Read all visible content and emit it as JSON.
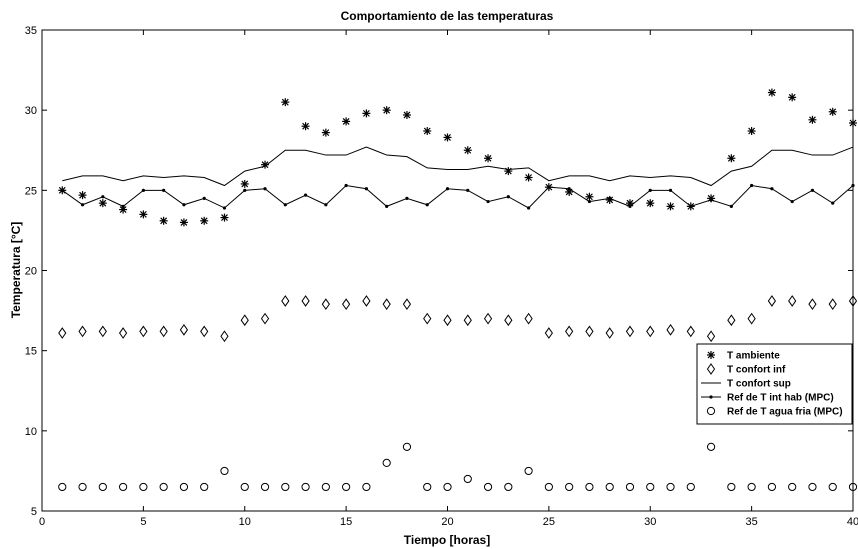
{
  "chart_data": {
    "type": "line",
    "title": "Comportamiento de las temperaturas",
    "xlabel": "Tiempo [horas]",
    "ylabel": "Temperatura [°C]",
    "xlim": [
      0,
      40
    ],
    "ylim": [
      5,
      35
    ],
    "xticks": [
      0,
      5,
      10,
      15,
      20,
      25,
      30,
      35,
      40
    ],
    "yticks": [
      5,
      10,
      15,
      20,
      25,
      30,
      35
    ],
    "grid": false,
    "legend_position": "bottom-right",
    "x": [
      1,
      2,
      3,
      4,
      5,
      6,
      7,
      8,
      9,
      10,
      11,
      12,
      13,
      14,
      15,
      16,
      17,
      18,
      19,
      20,
      21,
      22,
      23,
      24,
      25,
      26,
      27,
      28,
      29,
      30,
      31,
      32,
      33,
      34,
      35,
      36,
      37,
      38,
      39,
      40
    ],
    "series": [
      {
        "name": "T ambiente",
        "marker": "star",
        "line": false,
        "values": [
          25.0,
          24.7,
          24.2,
          23.8,
          23.5,
          23.1,
          23.0,
          23.1,
          23.3,
          25.4,
          26.6,
          30.5,
          29.0,
          28.6,
          29.3,
          29.8,
          30.0,
          29.7,
          28.7,
          28.3,
          27.5,
          27.0,
          26.2,
          25.8,
          25.2,
          24.9,
          24.6,
          24.4,
          24.2,
          24.2,
          24.0,
          24.0,
          24.5,
          27.0,
          28.7,
          31.1,
          30.8,
          29.4,
          29.9,
          29.2
        ]
      },
      {
        "name": "T confort inf",
        "marker": "diamond",
        "line": false,
        "values": [
          16.1,
          16.2,
          16.2,
          16.1,
          16.2,
          16.2,
          16.3,
          16.2,
          15.9,
          16.9,
          17.0,
          18.1,
          18.1,
          17.9,
          17.9,
          18.1,
          17.9,
          17.9,
          17.0,
          16.9,
          16.9,
          17.0,
          16.9,
          17.0,
          16.1,
          16.2,
          16.2,
          16.1,
          16.2,
          16.2,
          16.3,
          16.2,
          15.9,
          16.9,
          17.0,
          18.1,
          18.1,
          17.9,
          17.9,
          18.1
        ]
      },
      {
        "name": "T confort sup",
        "marker": "none",
        "line": true,
        "values": [
          25.6,
          25.9,
          25.9,
          25.6,
          25.9,
          25.8,
          25.9,
          25.8,
          25.3,
          26.2,
          26.5,
          27.5,
          27.5,
          27.2,
          27.2,
          27.7,
          27.2,
          27.1,
          26.4,
          26.3,
          26.3,
          26.5,
          26.3,
          26.4,
          25.6,
          25.9,
          25.9,
          25.6,
          25.9,
          25.8,
          25.9,
          25.8,
          25.3,
          26.2,
          26.5,
          27.5,
          27.5,
          27.2,
          27.2,
          27.7
        ]
      },
      {
        "name": "Ref de T int hab (MPC)",
        "marker": "dot",
        "line": true,
        "values": [
          25.0,
          24.1,
          24.6,
          24.0,
          25.0,
          25.0,
          24.1,
          24.5,
          23.9,
          25.0,
          25.1,
          24.1,
          24.7,
          24.1,
          25.3,
          25.1,
          24.0,
          24.5,
          24.1,
          25.1,
          25.0,
          24.3,
          24.6,
          23.9,
          25.2,
          25.1,
          24.3,
          24.5,
          24.0,
          25.0,
          25.0,
          24.0,
          24.4,
          24.0,
          25.3,
          25.1,
          24.3,
          25.0,
          24.2,
          25.3
        ]
      },
      {
        "name": "Ref de T agua fria (MPC)",
        "marker": "circle",
        "line": false,
        "values": [
          6.5,
          6.5,
          6.5,
          6.5,
          6.5,
          6.5,
          6.5,
          6.5,
          7.5,
          6.5,
          6.5,
          6.5,
          6.5,
          6.5,
          6.5,
          6.5,
          8.0,
          9.0,
          6.5,
          6.5,
          7.0,
          6.5,
          6.5,
          7.5,
          6.5,
          6.5,
          6.5,
          6.5,
          6.5,
          6.5,
          6.5,
          6.5,
          9.0,
          6.5,
          6.5,
          6.5,
          6.5,
          6.5,
          6.5,
          6.5
        ]
      }
    ]
  }
}
